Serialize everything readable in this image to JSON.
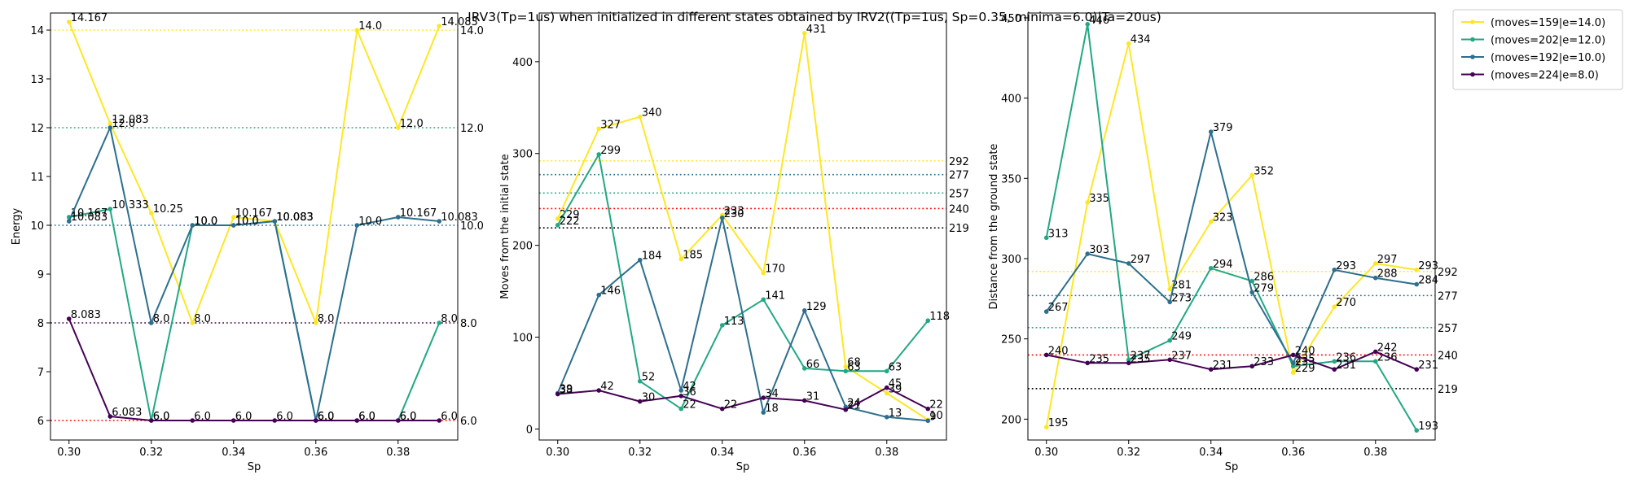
{
  "title": "IRV3(Tp=1us) when initialized in different states obtained by IRV2((Tp=1us, Sp=0.35, minima=6.0)|Ta=20us)",
  "legend": {
    "placement": "outside-top-right",
    "entries": [
      {
        "label": "(moves=159|e=14.0)",
        "color": "#fde725"
      },
      {
        "label": "(moves=202|e=12.0)",
        "color": "#21a884"
      },
      {
        "label": "(moves=192|e=10.0)",
        "color": "#2c6f8e"
      },
      {
        "label": "(moves=224|e=8.0)",
        "color": "#440154"
      }
    ]
  },
  "chart_data": [
    {
      "type": "line",
      "xlabel": "Sp",
      "ylabel": "Energy",
      "xlim": [
        0.2955,
        0.3945
      ],
      "ylim": [
        5.6,
        14.35
      ],
      "xticks": [
        0.3,
        0.32,
        0.34,
        0.36,
        0.38
      ],
      "xtick_labels": [
        "0.30",
        "0.32",
        "0.34",
        "0.36",
        "0.38"
      ],
      "yticks": [
        6,
        7,
        8,
        9,
        10,
        11,
        12,
        13,
        14
      ],
      "ytick_labels": [
        "6",
        "7",
        "8",
        "9",
        "10",
        "11",
        "12",
        "13",
        "14"
      ],
      "grid": false,
      "x": [
        0.3,
        0.31,
        0.32,
        0.33,
        0.34,
        0.35,
        0.36,
        0.37,
        0.38,
        0.39
      ],
      "series": [
        {
          "name": "(moves=159|e=14.0)",
          "color": "#fde725",
          "values": [
            14.167,
            12.083,
            10.25,
            8.0,
            10.167,
            10.083,
            8.0,
            14.0,
            12.0,
            14.083
          ],
          "labels": [
            "14.167",
            "12.083",
            "10.25",
            "8.0",
            "10.167",
            "10.083",
            "8.0",
            "14.0",
            "12.0",
            "14.083"
          ]
        },
        {
          "name": "(moves=202|e=12.0)",
          "color": "#21a884",
          "values": [
            10.167,
            10.333,
            6.0,
            10.0,
            10.0,
            10.083,
            6.0,
            6.0,
            6.0,
            8.0
          ],
          "labels": [
            "10.167",
            "10.333",
            "6.0",
            "10.0",
            "10.0",
            "10.083",
            "6.0",
            "6.0",
            "6.0",
            "8.0"
          ]
        },
        {
          "name": "(moves=192|e=10.0)",
          "color": "#2c6f8e",
          "values": [
            10.083,
            12.0,
            8.0,
            10.0,
            10.0,
            10.083,
            6.0,
            10.0,
            10.167,
            10.083
          ],
          "labels": [
            "10.083",
            "12.0",
            "8.0",
            "10.0",
            "10.0",
            "10.083",
            "6.0",
            "10.0",
            "10.167",
            "10.083"
          ]
        },
        {
          "name": "(moves=224|e=8.0)",
          "color": "#440154",
          "values": [
            8.083,
            6.083,
            6.0,
            6.0,
            6.0,
            6.0,
            6.0,
            6.0,
            6.0,
            6.0
          ],
          "labels": [
            "8.083",
            "6.083",
            "6.0",
            "6.0",
            "6.0",
            "6.0",
            "6.0",
            "6.0",
            "6.0",
            "6.0"
          ]
        }
      ],
      "hlines": [
        {
          "y": 14.0,
          "color": "#fde725",
          "label": "14.0"
        },
        {
          "y": 12.0,
          "color": "#21a884",
          "label": "12.0"
        },
        {
          "y": 10.0,
          "color": "#2c6f8e",
          "label": "10.0"
        },
        {
          "y": 8.0,
          "color": "#440154",
          "label": "8.0"
        },
        {
          "y": 6.0,
          "color": "#ff0000",
          "label": "6.0"
        }
      ]
    },
    {
      "type": "line",
      "xlabel": "Sp",
      "ylabel": "Moves from the initial state",
      "xlim": [
        0.2955,
        0.3945
      ],
      "ylim": [
        -12,
        453
      ],
      "xticks": [
        0.3,
        0.32,
        0.34,
        0.36,
        0.38
      ],
      "xtick_labels": [
        "0.30",
        "0.32",
        "0.34",
        "0.36",
        "0.38"
      ],
      "yticks": [
        0,
        100,
        200,
        300,
        400
      ],
      "ytick_labels": [
        "0",
        "100",
        "200",
        "300",
        "400"
      ],
      "grid": false,
      "x": [
        0.3,
        0.31,
        0.32,
        0.33,
        0.34,
        0.35,
        0.36,
        0.37,
        0.38,
        0.39
      ],
      "series": [
        {
          "name": "(moves=159|e=14.0)",
          "color": "#fde725",
          "values": [
            229,
            327,
            340,
            185,
            233,
            170,
            431,
            68,
            39,
            10
          ],
          "labels": [
            "229",
            "327",
            "340",
            "185",
            "233",
            "170",
            "431",
            "68",
            "39",
            "10"
          ]
        },
        {
          "name": "(moves=202|e=12.0)",
          "color": "#21a884",
          "values": [
            222,
            299,
            52,
            22,
            113,
            141,
            66,
            63,
            63,
            118
          ],
          "labels": [
            "222",
            "299",
            "52",
            "22",
            "113",
            "141",
            "66",
            "63",
            "63",
            "118"
          ]
        },
        {
          "name": "(moves=192|e=10.0)",
          "color": "#2c6f8e",
          "values": [
            39,
            146,
            184,
            42,
            230,
            18,
            129,
            24,
            13,
            9
          ],
          "labels": [
            "39",
            "146",
            "184",
            "42",
            "230",
            "18",
            "129",
            "24",
            "13",
            "9"
          ]
        },
        {
          "name": "(moves=224|e=8.0)",
          "color": "#440154",
          "values": [
            38,
            42,
            30,
            36,
            22,
            34,
            31,
            21,
            45,
            22
          ],
          "labels": [
            "38",
            "42",
            "30",
            "36",
            "22",
            "34",
            "31",
            "21",
            "45",
            "22"
          ]
        }
      ],
      "hlines": [
        {
          "y": 292,
          "color": "#fde725",
          "label": "292"
        },
        {
          "y": 277,
          "color": "#2c6f8e",
          "label": "277"
        },
        {
          "y": 257,
          "color": "#21a884",
          "label": "257"
        },
        {
          "y": 240,
          "color": "#ff0000",
          "label": "240"
        },
        {
          "y": 219,
          "color": "#000000",
          "label": "219"
        }
      ]
    },
    {
      "type": "line",
      "xlabel": "Sp",
      "ylabel": "Distance from the ground state",
      "xlim": [
        0.2955,
        0.3945
      ],
      "ylim": [
        187,
        453
      ],
      "xticks": [
        0.3,
        0.32,
        0.34,
        0.36,
        0.38
      ],
      "xtick_labels": [
        "0.30",
        "0.32",
        "0.34",
        "0.36",
        "0.38"
      ],
      "yticks": [
        200,
        250,
        300,
        350,
        400,
        450
      ],
      "ytick_labels": [
        "200",
        "250",
        "300",
        "350",
        "400",
        "450"
      ],
      "grid": false,
      "x": [
        0.3,
        0.31,
        0.32,
        0.33,
        0.34,
        0.35,
        0.36,
        0.37,
        0.38,
        0.39
      ],
      "series": [
        {
          "name": "(moves=159|e=14.0)",
          "color": "#fde725",
          "values": [
            195,
            335,
            434,
            281,
            323,
            352,
            229,
            270,
            297,
            293
          ],
          "labels": [
            "195",
            "335",
            "434",
            "281",
            "323",
            "352",
            "229",
            "270",
            "297",
            "293"
          ]
        },
        {
          "name": "(moves=202|e=12.0)",
          "color": "#21a884",
          "values": [
            313,
            446,
            237,
            249,
            294,
            286,
            233,
            236,
            236,
            193
          ],
          "labels": [
            "313",
            "446",
            "237",
            "249",
            "294",
            "286",
            "233",
            "236",
            "236",
            "193"
          ]
        },
        {
          "name": "(moves=192|e=10.0)",
          "color": "#2c6f8e",
          "values": [
            267,
            303,
            297,
            273,
            379,
            279,
            235,
            293,
            288,
            284
          ],
          "labels": [
            "267",
            "303",
            "297",
            "273",
            "379",
            "279",
            "235",
            "293",
            "288",
            "284"
          ]
        },
        {
          "name": "(moves=224|e=8.0)",
          "color": "#440154",
          "values": [
            240,
            235,
            235,
            237,
            231,
            233,
            240,
            231,
            242,
            231
          ],
          "labels": [
            "240",
            "235",
            "235",
            "237",
            "231",
            "233",
            "240",
            "231",
            "242",
            "231"
          ]
        }
      ],
      "hlines": [
        {
          "y": 292,
          "color": "#fde725",
          "label": "292"
        },
        {
          "y": 277,
          "color": "#2c6f8e",
          "label": "277"
        },
        {
          "y": 257,
          "color": "#21a884",
          "label": "257"
        },
        {
          "y": 240,
          "color": "#ff0000",
          "label": "240"
        },
        {
          "y": 219,
          "color": "#000000",
          "label": "219"
        }
      ]
    }
  ]
}
